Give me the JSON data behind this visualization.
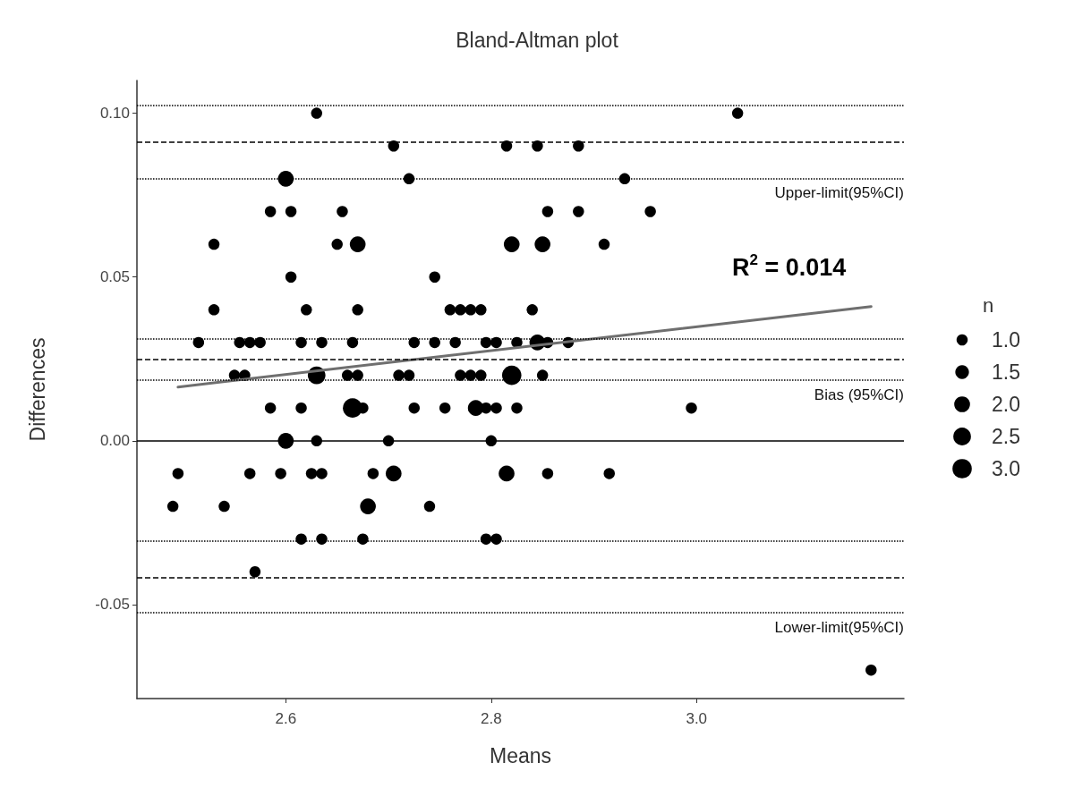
{
  "chart_data": {
    "type": "bubble",
    "title": "Bland-Altman plot",
    "xlabel": "Means",
    "ylabel": "Differences",
    "legend_title": "n",
    "xlim": [
      2.455,
      3.202
    ],
    "xticks": [
      2.6,
      2.8,
      {
        "value": 3.0,
        "label": "3.0"
      }
    ],
    "ylim": [
      -0.0787,
      0.11
    ],
    "yticks": [
      {
        "value": -0.05,
        "label": "-0.05"
      },
      {
        "value": 0,
        "label": "0.00"
      },
      0.05,
      {
        "value": 0.1,
        "label": "0.10"
      }
    ],
    "size_legend": [
      {
        "value": 1,
        "label": "1.0"
      },
      1.5,
      {
        "value": 2,
        "label": "2.0"
      },
      2.5,
      {
        "value": 3,
        "label": "3.0"
      }
    ],
    "grid": false,
    "series": [
      {
        "color": "#000000",
        "marker": "circle",
        "x": [
          2.63,
          3.04,
          2.705,
          2.815,
          2.845,
          2.885,
          2.6,
          2.72,
          2.93,
          2.585,
          2.605,
          2.655,
          2.855,
          2.885,
          2.955,
          2.53,
          2.65,
          2.67,
          2.82,
          2.85,
          2.91,
          2.605,
          2.745,
          2.53,
          2.62,
          2.67,
          2.76,
          2.77,
          2.78,
          2.79,
          2.84,
          2.515,
          2.555,
          2.565,
          2.575,
          2.615,
          2.635,
          2.665,
          2.725,
          2.745,
          2.765,
          2.795,
          2.805,
          2.825,
          2.845,
          2.855,
          2.875,
          2.55,
          2.56,
          2.63,
          2.66,
          2.67,
          2.71,
          2.72,
          2.77,
          2.78,
          2.79,
          2.82,
          2.85,
          2.585,
          2.615,
          2.665,
          2.675,
          2.725,
          2.755,
          2.785,
          2.795,
          2.805,
          2.825,
          2.995,
          2.6,
          2.63,
          2.7,
          2.8,
          2.495,
          2.565,
          2.595,
          2.625,
          2.635,
          2.685,
          2.705,
          2.815,
          2.855,
          2.915,
          2.49,
          2.54,
          2.68,
          2.74,
          2.615,
          2.635,
          2.675,
          2.795,
          2.805,
          2.57,
          3.17
        ],
        "values": [
          0.1,
          0.1,
          0.09,
          0.09,
          0.09,
          0.09,
          0.08,
          0.08,
          0.08,
          0.07,
          0.07,
          0.07,
          0.07,
          0.07,
          0.07,
          0.06,
          0.06,
          0.06,
          0.06,
          0.06,
          0.06,
          0.05,
          0.05,
          0.04,
          0.04,
          0.04,
          0.04,
          0.04,
          0.04,
          0.04,
          0.04,
          0.03,
          0.03,
          0.03,
          0.03,
          0.03,
          0.03,
          0.03,
          0.03,
          0.03,
          0.03,
          0.03,
          0.03,
          0.03,
          0.03,
          0.03,
          0.03,
          0.02,
          0.02,
          0.02,
          0.02,
          0.02,
          0.02,
          0.02,
          0.02,
          0.02,
          0.02,
          0.02,
          0.02,
          0.01,
          0.01,
          0.01,
          0.01,
          0.01,
          0.01,
          0.01,
          0.01,
          0.01,
          0.01,
          0.01,
          0,
          0,
          0,
          0,
          -0.01,
          -0.01,
          -0.01,
          -0.01,
          -0.01,
          -0.01,
          -0.01,
          -0.01,
          -0.01,
          -0.01,
          -0.02,
          -0.02,
          -0.02,
          -0.02,
          -0.03,
          -0.03,
          -0.03,
          -0.03,
          -0.03,
          -0.04,
          -0.07
        ],
        "sizes": [
          1,
          1,
          1,
          1,
          1,
          1,
          2,
          1,
          1,
          1,
          1,
          1,
          1,
          1,
          1,
          1,
          1,
          2,
          2,
          2,
          1,
          1,
          1,
          1,
          1,
          1,
          1,
          1,
          1,
          1,
          1,
          1,
          1,
          1,
          1,
          1,
          1,
          1,
          1,
          1,
          1,
          1,
          1,
          1,
          2,
          1,
          1,
          1,
          1,
          2.5,
          1,
          1,
          1,
          1,
          1,
          1,
          1,
          3,
          1,
          1,
          1,
          3,
          1,
          1,
          1,
          2,
          1,
          1,
          1,
          1,
          2,
          1,
          1,
          1,
          1,
          1,
          1,
          1,
          1,
          1,
          2,
          2,
          1,
          1,
          1,
          1,
          2,
          1,
          1,
          1,
          1,
          1,
          1,
          1,
          1
        ]
      },
      {
        "type": "line",
        "color": "#6f6f6f",
        "x": [
          2.495,
          3.17
        ],
        "values": [
          0.0164,
          0.041
        ]
      }
    ],
    "ref_lines": [
      {
        "axis": "y",
        "value": 0.1025,
        "line_style": "dotted"
      },
      {
        "axis": "y",
        "value": 0.0912,
        "line_style": "dashed"
      },
      {
        "axis": "y",
        "value": 0.0801,
        "line_style": "dotted",
        "label": "Upper-limit(95%CI)"
      },
      {
        "axis": "y",
        "value": 0.0311,
        "line_style": "dotted"
      },
      {
        "axis": "y",
        "value": 0.0249,
        "line_style": "dashed"
      },
      {
        "axis": "y",
        "value": 0.0186,
        "line_style": "dotted",
        "label": "Bias (95%CI)"
      },
      {
        "axis": "y",
        "value": 0,
        "line_style": "solid"
      },
      {
        "axis": "y",
        "value": -0.0306,
        "line_style": "dotted"
      },
      {
        "axis": "y",
        "value": -0.0418,
        "line_style": "dashed"
      },
      {
        "axis": "y",
        "value": -0.0525,
        "line_style": "dotted",
        "label": "Lower-limit(95%CI)"
      }
    ],
    "annotations": [
      "R$^{2}$ = 0.014"
    ]
  }
}
